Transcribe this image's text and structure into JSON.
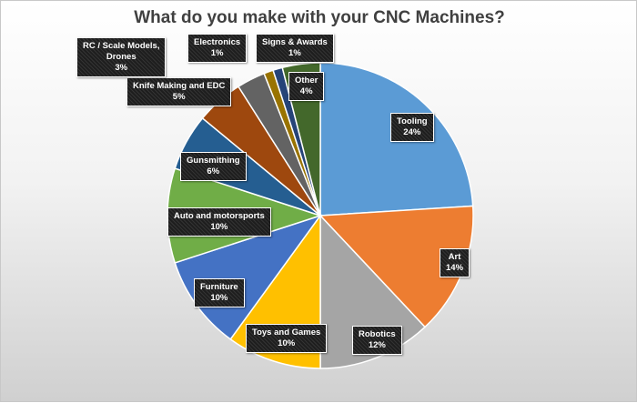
{
  "chart_data": {
    "type": "pie",
    "title": "What do you make with your CNC Machines?",
    "slices": [
      {
        "label": "Tooling",
        "value": 24,
        "value_label": "24%",
        "color": "#5b9bd5"
      },
      {
        "label": "Art",
        "value": 14,
        "value_label": "14%",
        "color": "#ed7d31"
      },
      {
        "label": "Robotics",
        "value": 12,
        "value_label": "12%",
        "color": "#a5a5a5"
      },
      {
        "label": "Toys and Games",
        "value": 10,
        "value_label": "10%",
        "color": "#ffc000"
      },
      {
        "label": "Furniture",
        "value": 10,
        "value_label": "10%",
        "color": "#4472c4"
      },
      {
        "label": "Auto and motorsports",
        "value": 10,
        "value_label": "10%",
        "color": "#70ad47"
      },
      {
        "label": "Gunsmithing",
        "value": 6,
        "value_label": "6%",
        "color": "#255e91"
      },
      {
        "label": "Knife Making and EDC",
        "value": 5,
        "value_label": "5%",
        "color": "#9e480e"
      },
      {
        "label": "RC / Scale Models, Drones",
        "label_lines": [
          "RC / Scale Models,",
          "Drones"
        ],
        "value": 3,
        "value_label": "3%",
        "color": "#636363"
      },
      {
        "label": "Electronics",
        "value": 1,
        "value_label": "1%",
        "color": "#997300"
      },
      {
        "label": "Signs & Awards",
        "value": 1,
        "value_label": "1%",
        "color": "#264478"
      },
      {
        "label": "Other",
        "value": 4,
        "value_label": "4%",
        "color": "#43682b"
      }
    ],
    "start_angle_deg": 0,
    "direction": "clockwise",
    "legend": "none",
    "data_labels": "category-and-percent"
  }
}
